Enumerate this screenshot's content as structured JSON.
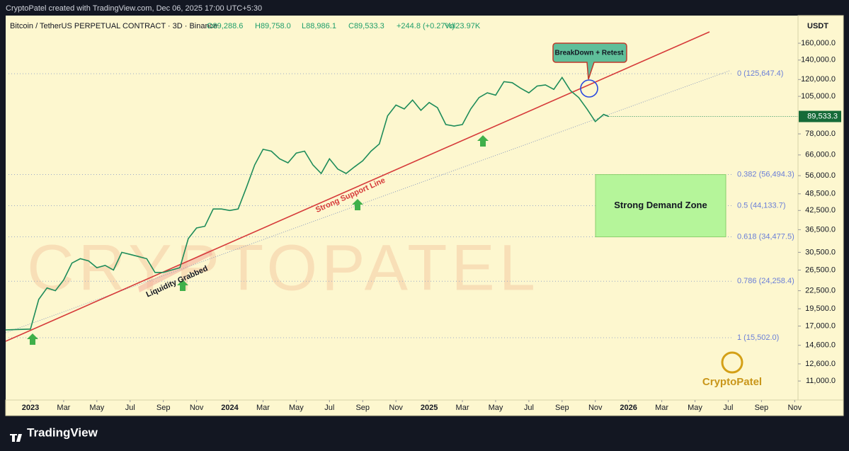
{
  "header": "CryptoPatel created with TradingView.com, Dec 06, 2025 17:00 UTC+5:30",
  "footer_brand": "TradingView",
  "chart_data": {
    "type": "line",
    "title": "Bitcoin / TetherUS PERPETUAL CONTRACT · 3D · Binance",
    "ohlc": [
      "O89,288.6",
      "H89,758.0",
      "L88,986.1",
      "C89,533.3",
      "+244.8 (+0.27%)",
      "Vol23.97K"
    ],
    "currency": "USDT",
    "log_scale": true,
    "series": [
      {
        "name": "BTCUSDT",
        "color": "#1e8c5a",
        "x": [
          -1.5,
          0,
          0.5,
          1,
          1.5,
          2,
          2.5,
          3,
          3.5,
          4,
          4.5,
          5,
          5.5,
          6,
          6.5,
          7,
          7.5,
          8,
          8.5,
          9,
          9.5,
          10,
          10.5,
          11,
          11.5,
          12,
          12.5,
          13,
          13.5,
          14,
          14.5,
          15,
          15.5,
          16,
          16.5,
          17,
          17.5,
          18,
          18.5,
          19,
          19.5,
          20,
          20.5,
          21,
          21.5,
          22,
          22.5,
          23,
          23.5,
          24,
          24.5,
          25,
          25.5,
          26,
          26.5,
          27,
          27.5,
          28,
          28.5,
          29,
          29.5,
          30,
          30.5,
          31,
          31.5,
          32,
          32.5,
          33,
          33.5,
          34,
          34.5,
          34.8
        ],
        "values": [
          16500,
          16600,
          21000,
          23000,
          22500,
          24500,
          28000,
          29000,
          28500,
          27000,
          27500,
          26500,
          30500,
          30000,
          29500,
          29000,
          26000,
          26000,
          26500,
          27000,
          34000,
          37000,
          37500,
          43000,
          43000,
          42500,
          43000,
          51000,
          61000,
          69000,
          68000,
          64000,
          62000,
          67000,
          68000,
          61000,
          57000,
          64000,
          59000,
          57000,
          60000,
          63000,
          68000,
          72000,
          90000,
          98000,
          95000,
          102000,
          94000,
          100000,
          96000,
          84000,
          83000,
          84000,
          95000,
          104000,
          108000,
          106000,
          118000,
          117000,
          112000,
          108000,
          114000,
          115000,
          111000,
          122000,
          110000,
          104000,
          95000,
          86000,
          91000,
          89533.3
        ]
      }
    ],
    "last_price": {
      "value": 89533.3,
      "label": "89,533.3"
    },
    "ylim": [
      9460,
      199200
    ],
    "yticks": [
      {
        "value": 160000,
        "label": "160,000.0"
      },
      {
        "value": 140000,
        "label": "140,000.0"
      },
      {
        "value": 120000,
        "label": "120,000.0"
      },
      {
        "value": 105000,
        "label": "105,000.0"
      },
      {
        "value": 78000,
        "label": "78,000.0"
      },
      {
        "value": 66000,
        "label": "66,000.0"
      },
      {
        "value": 56000,
        "label": "56,000.0"
      },
      {
        "value": 48500,
        "label": "48,500.0"
      },
      {
        "value": 42500,
        "label": "42,500.0"
      },
      {
        "value": 36500,
        "label": "36,500.0"
      },
      {
        "value": 30500,
        "label": "30,500.0"
      },
      {
        "value": 26500,
        "label": "26,500.0"
      },
      {
        "value": 22500,
        "label": "22,500.0"
      },
      {
        "value": 19500,
        "label": "19,500.0"
      },
      {
        "value": 17000,
        "label": "17,000.0"
      },
      {
        "value": 14600,
        "label": "14,600.0"
      },
      {
        "value": 12600,
        "label": "12,600.0"
      },
      {
        "value": 11000,
        "label": "11,000.0"
      }
    ],
    "xlim": [
      -1.49,
      46.2
    ],
    "xticks": [
      {
        "value": 0,
        "label": "2023"
      },
      {
        "value": 2,
        "label": "Mar"
      },
      {
        "value": 4,
        "label": "May"
      },
      {
        "value": 6,
        "label": "Jul"
      },
      {
        "value": 8,
        "label": "Sep"
      },
      {
        "value": 10,
        "label": "Nov"
      },
      {
        "value": 12,
        "label": "2024"
      },
      {
        "value": 14,
        "label": "Mar"
      },
      {
        "value": 16,
        "label": "May"
      },
      {
        "value": 18,
        "label": "Jul"
      },
      {
        "value": 20,
        "label": "Sep"
      },
      {
        "value": 22,
        "label": "Nov"
      },
      {
        "value": 24,
        "label": "2025"
      },
      {
        "value": 26,
        "label": "Mar"
      },
      {
        "value": 28,
        "label": "May"
      },
      {
        "value": 30,
        "label": "Jul"
      },
      {
        "value": 32,
        "label": "Sep"
      },
      {
        "value": 34,
        "label": "Nov"
      },
      {
        "value": 36,
        "label": "2026"
      },
      {
        "value": 38,
        "label": "Mar"
      },
      {
        "value": 40,
        "label": "May"
      },
      {
        "value": 42,
        "label": "Jul"
      },
      {
        "value": 44,
        "label": "Sep"
      },
      {
        "value": 46,
        "label": "Nov"
      }
    ],
    "fib_levels": [
      {
        "label": "0 (125,647.4)",
        "value": 125647.4
      },
      {
        "label": "0.382 (56,494.3)",
        "value": 56494.3
      },
      {
        "label": "0.5 (44,133.7)",
        "value": 44133.7
      },
      {
        "label": "0.618 (34,477.5)",
        "value": 34477.5
      },
      {
        "label": "0.786 (24,258.4)",
        "value": 24258.4
      },
      {
        "label": "1 (15,502.0)",
        "value": 15502.0
      }
    ],
    "annotations": {
      "breakdown": "BreakDown + Retest",
      "support": "Strong Support Line",
      "liquidity": "Liquidity Grabbed",
      "demand_zone": "Strong Demand Zone",
      "watermark": "CRYPTOPATEL",
      "logo": "CryptoPatel"
    }
  }
}
